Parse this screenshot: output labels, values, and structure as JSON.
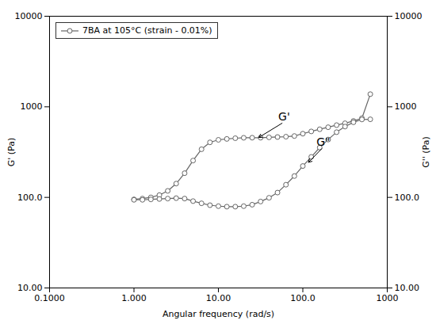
{
  "chart_data": {
    "type": "line",
    "xlabel": "Angular frequency (rad/s)",
    "ylabel": "G' (Pa)",
    "y2label": "G'' (Pa)",
    "log": true,
    "grid": false,
    "legend": "upper left",
    "xlim": [
      0.1,
      1000
    ],
    "ylim": [
      10.0,
      10000
    ],
    "y2lim": [
      10.0,
      10000
    ],
    "xticks": [
      {
        "value": 0.1,
        "label": "0.1000"
      },
      {
        "value": 1,
        "label": "1.000"
      },
      {
        "value": 10,
        "label": "10.00"
      },
      {
        "value": 100,
        "label": "100.0"
      },
      1000
    ],
    "yticks": [
      {
        "value": 10,
        "label": "10.00"
      },
      {
        "value": 100,
        "label": "100.0"
      },
      1000,
      10000
    ],
    "y2ticks": [
      {
        "value": 10,
        "label": "10.00"
      },
      {
        "value": 100,
        "label": "100.0"
      },
      1000,
      10000
    ],
    "series": [
      {
        "name": "7BA at 105°C (strain - 0.01%)",
        "color": "#666666",
        "marker": "circle",
        "x": [
          1.0,
          1.26,
          1.585,
          2.0,
          2.512,
          3.162,
          3.981,
          5.012,
          6.31,
          7.943,
          10.0,
          12.59,
          15.85,
          19.95,
          25.12,
          31.62,
          39.81,
          50.12,
          63.1,
          79.43,
          100.0,
          125.9,
          158.5,
          199.5,
          251.2,
          316.2,
          398.1,
          501.2,
          630.0
        ],
        "values": [
          95,
          97,
          100,
          106,
          118,
          142,
          185,
          255,
          340,
          405,
          432,
          442,
          450,
          455,
          456,
          456,
          460,
          464,
          468,
          476,
          505,
          535,
          565,
          595,
          628,
          658,
          698,
          748,
          1380
        ]
      },
      {
        "color": "#666666",
        "marker": "circle",
        "x": [
          1.0,
          1.26,
          1.585,
          2.0,
          2.512,
          3.162,
          3.981,
          5.012,
          6.31,
          7.943,
          10.0,
          12.59,
          15.85,
          19.95,
          25.12,
          31.62,
          39.81,
          50.12,
          63.1,
          79.43,
          100.0,
          125.9,
          158.5,
          199.5,
          251.2,
          316.2,
          398.1,
          501.2,
          630.0
        ],
        "values": [
          94,
          94,
          95,
          96,
          97,
          98,
          97,
          91,
          86,
          82,
          80,
          79,
          79,
          80,
          83,
          90,
          99,
          113,
          138,
          172,
          222,
          280,
          355,
          435,
          525,
          605,
          675,
          725,
          728
        ]
      }
    ],
    "annotations": [
      {
        "text": "G'",
        "x": 28,
        "y": 440,
        "text_x": 60,
        "text_y": 680
      },
      {
        "text": "G\"",
        "x": 110,
        "y": 230,
        "text_x": 175,
        "text_y": 360
      }
    ]
  }
}
